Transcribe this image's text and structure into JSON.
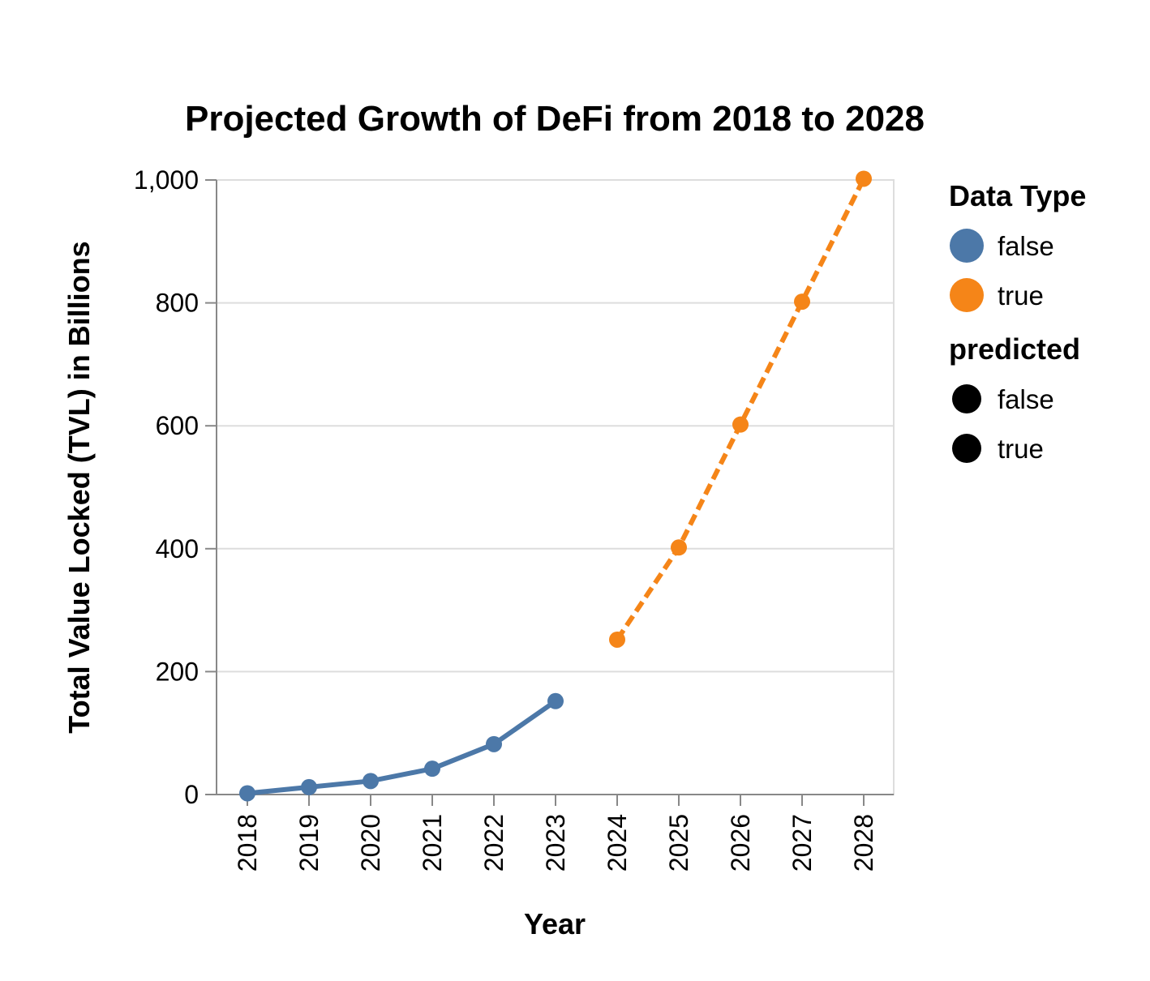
{
  "chart_data": {
    "type": "line",
    "title": "Projected Growth of DeFi from 2018 to 2028",
    "xlabel": "Year",
    "ylabel": "Total Value Locked (TVL) in Billions",
    "categories": [
      "2018",
      "2019",
      "2020",
      "2021",
      "2022",
      "2023",
      "2024",
      "2025",
      "2026",
      "2027",
      "2028"
    ],
    "ylim": [
      0,
      1000
    ],
    "y_ticks": [
      {
        "value": 0,
        "label": "0"
      },
      {
        "value": 200,
        "label": "200"
      },
      {
        "value": 400,
        "label": "400"
      },
      {
        "value": 600,
        "label": "600"
      },
      {
        "value": 800,
        "label": "800"
      },
      {
        "value": 1000,
        "label": "1,000"
      }
    ],
    "grid": true,
    "legend_position": "right",
    "series": [
      {
        "name": "false",
        "color": "#4c78a8",
        "dashed": false,
        "x": [
          "2018",
          "2019",
          "2020",
          "2021",
          "2022",
          "2023"
        ],
        "values": [
          2,
          12,
          22,
          42,
          82,
          152
        ]
      },
      {
        "name": "true",
        "color": "#f58518",
        "dashed": true,
        "x": [
          "2024",
          "2025",
          "2026",
          "2027",
          "2028"
        ],
        "values": [
          252,
          402,
          602,
          802,
          1002
        ]
      }
    ],
    "legends": [
      {
        "title": "Data Type",
        "entries": [
          {
            "label": "false",
            "color": "#4c78a8"
          },
          {
            "label": "true",
            "color": "#f58518"
          }
        ]
      },
      {
        "title": "predicted",
        "entries": [
          {
            "label": "false",
            "color": "#000000"
          },
          {
            "label": "true",
            "color": "#000000"
          }
        ]
      }
    ]
  }
}
